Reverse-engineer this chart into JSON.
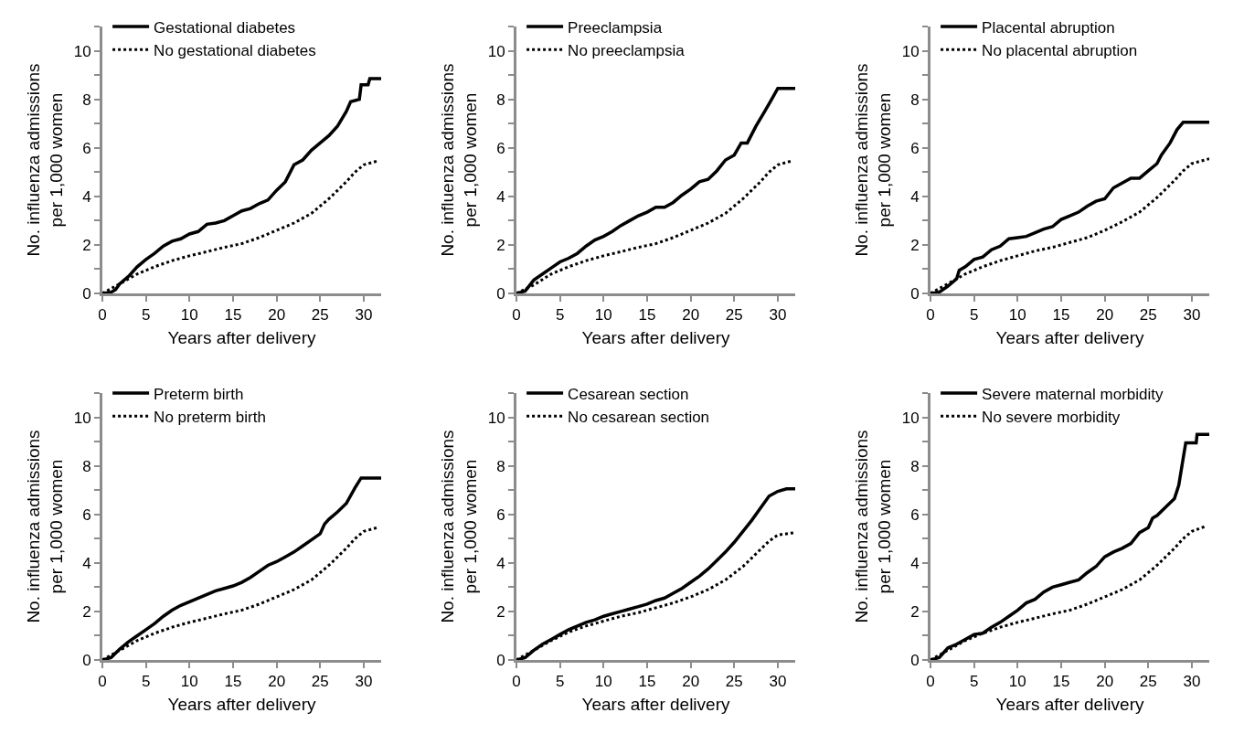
{
  "chart_data": [
    {
      "type": "line",
      "xlabel": "Years after delivery",
      "ylabel": "No. influenza admissions\nper 1,000 women",
      "xlim": [
        0,
        32
      ],
      "xticks": [
        0,
        5,
        10,
        15,
        20,
        25,
        30
      ],
      "ylim": [
        0,
        11
      ],
      "yticks": [
        0,
        {
          "value": 1,
          "label": null
        },
        2,
        {
          "value": 3,
          "label": null
        },
        4,
        {
          "value": 5,
          "label": null
        },
        6,
        {
          "value": 7,
          "label": null
        },
        8,
        {
          "value": 9,
          "label": null
        },
        10,
        {
          "value": 11,
          "label": null
        }
      ],
      "grid": false,
      "legend": "top left",
      "marker": "none",
      "series": [
        {
          "name": "Gestational diabetes",
          "color": "#000000",
          "line_style": "solid",
          "x": [
            0,
            1,
            1.5,
            2,
            3,
            4,
            5,
            6,
            7,
            8,
            9,
            10,
            11,
            12,
            13,
            14,
            15,
            16,
            17,
            18,
            19,
            20,
            21,
            22,
            23,
            24,
            25,
            26,
            27,
            28,
            28.5,
            29.5,
            29.7,
            30.5,
            30.7,
            32
          ],
          "values": [
            0,
            0.05,
            0.15,
            0.4,
            0.7,
            1.1,
            1.4,
            1.65,
            1.95,
            2.15,
            2.25,
            2.45,
            2.55,
            2.85,
            2.9,
            3.0,
            3.2,
            3.4,
            3.5,
            3.7,
            3.85,
            4.25,
            4.6,
            5.3,
            5.5,
            5.9,
            6.2,
            6.5,
            6.9,
            7.5,
            7.9,
            8.0,
            8.6,
            8.6,
            8.85,
            8.85
          ]
        },
        {
          "name": "No gestational diabetes",
          "color": "#000000",
          "line_style": "dotted",
          "x": [
            0,
            2,
            4,
            6,
            8,
            10,
            12,
            14,
            16,
            18,
            20,
            22,
            24,
            26,
            28,
            29,
            30,
            31.5
          ],
          "values": [
            0,
            0.4,
            0.8,
            1.1,
            1.35,
            1.55,
            1.72,
            1.9,
            2.05,
            2.3,
            2.6,
            2.9,
            3.3,
            3.9,
            4.6,
            5.0,
            5.3,
            5.45
          ]
        }
      ]
    },
    {
      "type": "line",
      "xlabel": "Years after delivery",
      "ylabel": "No. influenza admissions\nper 1,000 women",
      "xlim": [
        0,
        32
      ],
      "xticks": [
        0,
        5,
        10,
        15,
        20,
        25,
        30
      ],
      "ylim": [
        0,
        11
      ],
      "yticks": [
        0,
        {
          "value": 1,
          "label": null
        },
        2,
        {
          "value": 3,
          "label": null
        },
        4,
        {
          "value": 5,
          "label": null
        },
        6,
        {
          "value": 7,
          "label": null
        },
        8,
        {
          "value": 9,
          "label": null
        },
        10,
        {
          "value": 11,
          "label": null
        }
      ],
      "grid": false,
      "legend": "top left",
      "marker": "none",
      "series": [
        {
          "name": "Preeclampsia",
          "color": "#000000",
          "line_style": "solid",
          "x": [
            0,
            1,
            2,
            3,
            4,
            5,
            6,
            7,
            8,
            9,
            10,
            11,
            12,
            13,
            14,
            15,
            16,
            17,
            18,
            19,
            20,
            21,
            22,
            23,
            24,
            25,
            25.8,
            26.5,
            27.5,
            28.5,
            29.3,
            30,
            32
          ],
          "values": [
            0,
            0.1,
            0.55,
            0.8,
            1.05,
            1.3,
            1.45,
            1.65,
            1.95,
            2.2,
            2.35,
            2.55,
            2.8,
            3.0,
            3.2,
            3.35,
            3.55,
            3.55,
            3.75,
            4.05,
            4.3,
            4.6,
            4.7,
            5.05,
            5.5,
            5.7,
            6.2,
            6.2,
            6.9,
            7.5,
            8.0,
            8.45,
            8.45
          ]
        },
        {
          "name": "No preeclampsia",
          "color": "#000000",
          "line_style": "dotted",
          "x": [
            0,
            2,
            4,
            6,
            8,
            10,
            12,
            14,
            16,
            18,
            20,
            22,
            24,
            26,
            28,
            29,
            30,
            31.5
          ],
          "values": [
            0,
            0.35,
            0.8,
            1.1,
            1.35,
            1.55,
            1.72,
            1.9,
            2.05,
            2.3,
            2.6,
            2.9,
            3.3,
            3.9,
            4.6,
            5.0,
            5.3,
            5.45
          ]
        }
      ]
    },
    {
      "type": "line",
      "xlabel": "Years after delivery",
      "ylabel": "No. influenza admissions\nper 1,000 women",
      "xlim": [
        0,
        32
      ],
      "xticks": [
        0,
        5,
        10,
        15,
        20,
        25,
        30
      ],
      "ylim": [
        0,
        11
      ],
      "yticks": [
        0,
        {
          "value": 1,
          "label": null
        },
        2,
        {
          "value": 3,
          "label": null
        },
        4,
        {
          "value": 5,
          "label": null
        },
        6,
        {
          "value": 7,
          "label": null
        },
        8,
        {
          "value": 9,
          "label": null
        },
        10,
        {
          "value": 11,
          "label": null
        }
      ],
      "grid": false,
      "legend": "top left",
      "marker": "none",
      "series": [
        {
          "name": "Placental abruption",
          "color": "#000000",
          "line_style": "solid",
          "x": [
            0,
            1,
            2,
            3,
            3.3,
            4,
            5,
            6,
            7,
            8,
            9,
            10,
            11,
            12,
            13,
            14,
            15,
            16,
            17,
            18,
            19,
            20,
            21,
            22,
            23,
            24,
            25,
            26,
            26.5,
            27.5,
            28.3,
            29,
            32
          ],
          "values": [
            0,
            0.05,
            0.3,
            0.6,
            0.95,
            1.1,
            1.4,
            1.5,
            1.8,
            1.95,
            2.25,
            2.3,
            2.35,
            2.5,
            2.65,
            2.75,
            3.05,
            3.2,
            3.35,
            3.6,
            3.8,
            3.9,
            4.35,
            4.55,
            4.75,
            4.75,
            5.05,
            5.35,
            5.7,
            6.2,
            6.75,
            7.05,
            7.05
          ]
        },
        {
          "name": "No placental abruption",
          "color": "#000000",
          "line_style": "dotted",
          "x": [
            0,
            2,
            4,
            6,
            8,
            10,
            12,
            14,
            16,
            18,
            20,
            22,
            24,
            26,
            28,
            29,
            30,
            32
          ],
          "values": [
            0,
            0.4,
            0.8,
            1.1,
            1.35,
            1.55,
            1.75,
            1.9,
            2.1,
            2.3,
            2.6,
            2.95,
            3.35,
            3.95,
            4.65,
            5.05,
            5.35,
            5.55
          ]
        }
      ]
    },
    {
      "type": "line",
      "xlabel": "Years after delivery",
      "ylabel": "No. influenza admissions\nper 1,000 women",
      "xlim": [
        0,
        32
      ],
      "xticks": [
        0,
        5,
        10,
        15,
        20,
        25,
        30
      ],
      "ylim": [
        0,
        11
      ],
      "yticks": [
        0,
        {
          "value": 1,
          "label": null
        },
        2,
        {
          "value": 3,
          "label": null
        },
        4,
        {
          "value": 5,
          "label": null
        },
        6,
        {
          "value": 7,
          "label": null
        },
        8,
        {
          "value": 9,
          "label": null
        },
        10,
        {
          "value": 11,
          "label": null
        }
      ],
      "grid": false,
      "legend": "top left",
      "marker": "none",
      "series": [
        {
          "name": "Preterm birth",
          "color": "#000000",
          "line_style": "solid",
          "x": [
            0,
            1,
            2,
            3,
            4,
            5,
            6,
            7,
            8,
            9,
            10,
            11,
            12,
            13,
            14,
            15,
            16,
            17,
            18,
            19,
            20,
            21,
            22,
            23,
            24,
            25,
            25.5,
            26,
            27,
            28,
            29,
            29.7,
            32
          ],
          "values": [
            0,
            0.1,
            0.45,
            0.75,
            1.0,
            1.25,
            1.5,
            1.8,
            2.05,
            2.25,
            2.4,
            2.55,
            2.7,
            2.85,
            2.95,
            3.05,
            3.2,
            3.4,
            3.65,
            3.9,
            4.05,
            4.25,
            4.45,
            4.7,
            4.95,
            5.2,
            5.6,
            5.8,
            6.1,
            6.45,
            7.1,
            7.5,
            7.5
          ]
        },
        {
          "name": "No preterm birth",
          "color": "#000000",
          "line_style": "dotted",
          "x": [
            0,
            2,
            4,
            6,
            8,
            10,
            12,
            14,
            16,
            18,
            20,
            22,
            24,
            26,
            28,
            29,
            30,
            31.5
          ],
          "values": [
            0,
            0.4,
            0.8,
            1.1,
            1.35,
            1.55,
            1.72,
            1.9,
            2.05,
            2.3,
            2.6,
            2.9,
            3.3,
            3.9,
            4.6,
            5.0,
            5.3,
            5.45
          ]
        }
      ]
    },
    {
      "type": "line",
      "xlabel": "Years after delivery",
      "ylabel": "No. influenza admissions\nper 1,000 women",
      "xlim": [
        0,
        32
      ],
      "xticks": [
        0,
        5,
        10,
        15,
        20,
        25,
        30
      ],
      "ylim": [
        0,
        11
      ],
      "yticks": [
        0,
        {
          "value": 1,
          "label": null
        },
        2,
        {
          "value": 3,
          "label": null
        },
        4,
        {
          "value": 5,
          "label": null
        },
        6,
        {
          "value": 7,
          "label": null
        },
        8,
        {
          "value": 9,
          "label": null
        },
        10,
        {
          "value": 11,
          "label": null
        }
      ],
      "grid": false,
      "legend": "top left",
      "marker": "none",
      "series": [
        {
          "name": "Cesarean section",
          "color": "#000000",
          "line_style": "solid",
          "x": [
            0,
            1,
            2,
            3,
            4,
            5,
            6,
            7,
            8,
            9,
            10,
            11,
            12,
            13,
            14,
            15,
            16,
            17,
            18,
            19,
            20,
            21,
            22,
            23,
            24,
            25,
            26,
            27,
            28,
            29,
            30,
            31,
            32
          ],
          "values": [
            0,
            0.1,
            0.4,
            0.65,
            0.85,
            1.05,
            1.25,
            1.4,
            1.55,
            1.65,
            1.8,
            1.9,
            2.0,
            2.1,
            2.2,
            2.3,
            2.45,
            2.55,
            2.75,
            2.95,
            3.2,
            3.45,
            3.75,
            4.1,
            4.45,
            4.85,
            5.3,
            5.75,
            6.25,
            6.75,
            6.95,
            7.05,
            7.05
          ]
        },
        {
          "name": "No cesarean section",
          "color": "#000000",
          "line_style": "dotted",
          "x": [
            0,
            2,
            4,
            6,
            8,
            10,
            12,
            14,
            16,
            18,
            20,
            22,
            24,
            26,
            28,
            29,
            30,
            32
          ],
          "values": [
            0,
            0.4,
            0.8,
            1.15,
            1.4,
            1.6,
            1.8,
            1.95,
            2.15,
            2.35,
            2.6,
            2.9,
            3.3,
            3.85,
            4.55,
            4.9,
            5.15,
            5.25
          ]
        }
      ]
    },
    {
      "type": "line",
      "xlabel": "Years after delivery",
      "ylabel": "No. influenza admissions\nper 1,000 women",
      "xlim": [
        0,
        32
      ],
      "xticks": [
        0,
        5,
        10,
        15,
        20,
        25,
        30
      ],
      "ylim": [
        0,
        11
      ],
      "yticks": [
        0,
        {
          "value": 1,
          "label": null
        },
        2,
        {
          "value": 3,
          "label": null
        },
        4,
        {
          "value": 5,
          "label": null
        },
        6,
        {
          "value": 7,
          "label": null
        },
        8,
        {
          "value": 9,
          "label": null
        },
        10,
        {
          "value": 11,
          "label": null
        }
      ],
      "grid": false,
      "legend": "top left",
      "marker": "none",
      "series": [
        {
          "name": "Severe maternal morbidity",
          "color": "#000000",
          "line_style": "solid",
          "x": [
            0,
            1,
            2,
            3,
            4,
            5,
            6,
            7,
            8,
            9,
            10,
            11,
            12,
            13,
            14,
            15,
            16,
            17,
            18,
            19,
            20,
            21,
            22,
            23,
            24,
            25,
            25.5,
            26,
            27,
            28,
            28.5,
            29,
            29.3,
            30.5,
            30.6,
            32
          ],
          "values": [
            0,
            0.1,
            0.5,
            0.65,
            0.85,
            1.05,
            1.1,
            1.35,
            1.55,
            1.8,
            2.05,
            2.35,
            2.5,
            2.8,
            3.0,
            3.1,
            3.2,
            3.3,
            3.6,
            3.85,
            4.25,
            4.45,
            4.6,
            4.8,
            5.25,
            5.45,
            5.85,
            5.95,
            6.3,
            6.65,
            7.2,
            8.3,
            8.95,
            8.95,
            9.3,
            9.3
          ]
        },
        {
          "name": "No severe morbidity",
          "color": "#000000",
          "line_style": "dotted",
          "x": [
            0,
            2,
            4,
            6,
            8,
            10,
            12,
            14,
            16,
            18,
            20,
            22,
            24,
            26,
            28,
            29,
            30,
            31.5
          ],
          "values": [
            0,
            0.4,
            0.8,
            1.1,
            1.35,
            1.55,
            1.72,
            1.9,
            2.05,
            2.3,
            2.6,
            2.9,
            3.3,
            3.9,
            4.6,
            5.0,
            5.3,
            5.5
          ]
        }
      ]
    }
  ]
}
